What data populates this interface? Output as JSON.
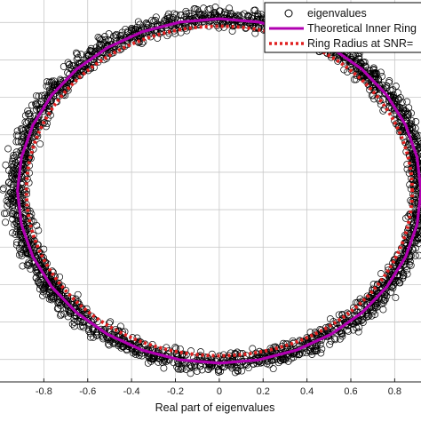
{
  "chart_data": {
    "type": "scatter",
    "title": "",
    "xlabel": "Real part of eigenvalues",
    "ylabel": "",
    "xlim": [
      -1.0,
      0.92
    ],
    "ylim": [
      -1.02,
      1.02
    ],
    "grid": true,
    "legend_position": "top-right",
    "x_ticks": [
      -0.8,
      -0.6,
      -0.4,
      -0.2,
      0,
      0.2,
      0.4,
      0.6,
      0.8
    ],
    "x_tick_labels": [
      "-0.8",
      "-0.6",
      "-0.4",
      "-0.2",
      "0",
      "0.2",
      "0.4",
      "0.6",
      "0.8"
    ],
    "y_ticks": [
      -0.9,
      -0.7,
      -0.5,
      -0.3,
      -0.1,
      0.1,
      0.3,
      0.5,
      0.7,
      0.9
    ],
    "series": [
      {
        "name": "eigenvalues",
        "kind": "scatter",
        "marker": "open-circle",
        "color": "#000000",
        "ring_center": [
          0,
          0
        ],
        "inner_radius": 0.84,
        "outer_radius": 1.0,
        "point_count": 2600
      },
      {
        "name": "Theoretical Inner Ring",
        "kind": "line",
        "style": "solid",
        "color": "#b000b0",
        "radius": 0.92,
        "polygon_sides": 32
      },
      {
        "name": "Ring Radius at SNR=",
        "kind": "line",
        "style": "dotted",
        "color": "#e02020",
        "radius": 0.88
      }
    ]
  }
}
